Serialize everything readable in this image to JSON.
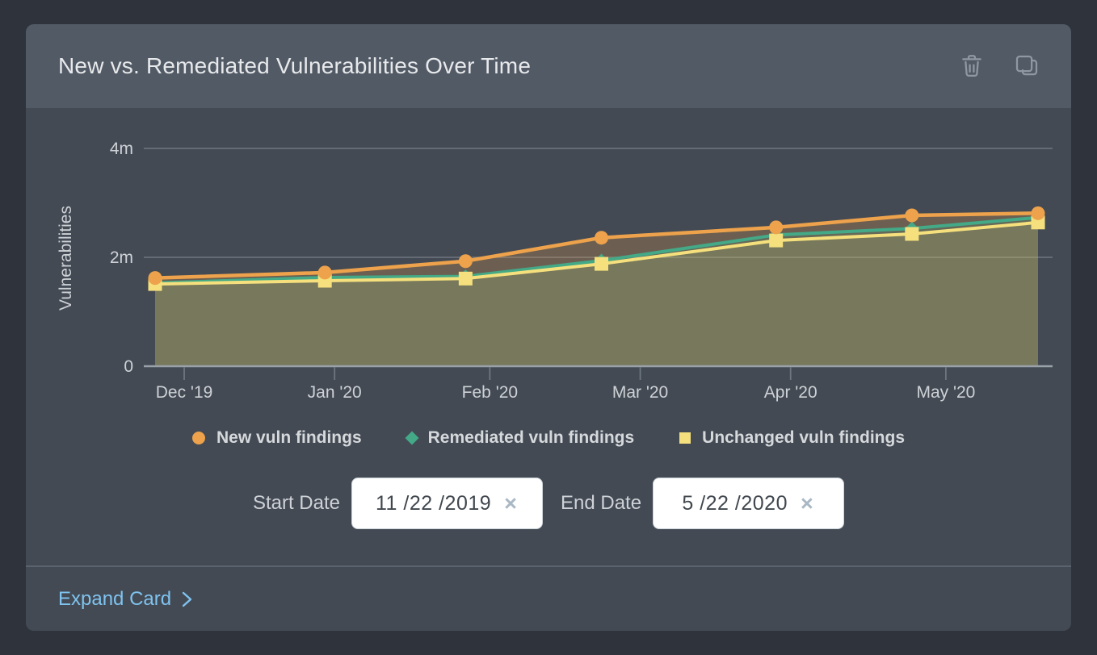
{
  "card": {
    "title": "New vs. Remediated Vulnerabilities Over Time",
    "actions": {
      "delete_icon": "trash-icon",
      "clone_icon": "copy-icon"
    },
    "footer": {
      "expand_label": "Expand Card",
      "chevron_icon": "chevron-right-icon"
    }
  },
  "filters": {
    "start_date": {
      "label": "Start Date",
      "value": "11 /22 /2019",
      "clear_glyph": "×"
    },
    "end_date": {
      "label": "End Date",
      "value": "5 /22 /2020",
      "clear_glyph": "×"
    }
  },
  "chart_data": {
    "type": "area",
    "title": "New vs. Remediated Vulnerabilities Over Time",
    "xlabel": "",
    "ylabel": "Vulnerabilities",
    "ylim": [
      0,
      4000000
    ],
    "yticks": [
      {
        "value": 0,
        "label": "0"
      },
      {
        "value": 2000000,
        "label": "2m"
      },
      {
        "value": 4000000,
        "label": "4m"
      }
    ],
    "grid": true,
    "legend_position": "bottom",
    "x_axis": {
      "unit": "days-from-start",
      "range": [
        0,
        182
      ],
      "ticks": [
        {
          "day": 6,
          "label": "Dec '19"
        },
        {
          "day": 37,
          "label": "Jan '20"
        },
        {
          "day": 69,
          "label": "Feb '20"
        },
        {
          "day": 100,
          "label": "Mar '20"
        },
        {
          "day": 131,
          "label": "Apr '20"
        },
        {
          "day": 163,
          "label": "May '20"
        }
      ]
    },
    "x_days": [
      0,
      35,
      64,
      92,
      128,
      156,
      182
    ],
    "series": [
      {
        "name": "New vuln findings",
        "marker": "circle",
        "color": "#eda24b",
        "values": [
          1620000,
          1720000,
          1930000,
          2360000,
          2550000,
          2770000,
          2810000
        ]
      },
      {
        "name": "Remediated vuln findings",
        "marker": "diamond",
        "color": "#43a987",
        "values": [
          1530000,
          1630000,
          1650000,
          1940000,
          2410000,
          2530000,
          2730000
        ]
      },
      {
        "name": "Unchanged vuln findings",
        "marker": "square",
        "color": "#f5e07d",
        "values": [
          1510000,
          1570000,
          1610000,
          1880000,
          2310000,
          2430000,
          2640000
        ]
      }
    ]
  },
  "colors": {
    "page_bg": "#2e333c",
    "card_header_bg": "#525a66",
    "card_body_bg": "#434a54",
    "divider": "#5b636e",
    "title_text": "#e7e9eb",
    "muted_icon": "#8f98a2",
    "axis_text": "#ced2d6",
    "gridline": "#6f7680",
    "axis_line": "#9aa1a9",
    "legend_text": "#d6d9dc",
    "link": "#7fc3ef",
    "input_bg": "#ffffff",
    "input_border": "#ccd3d9",
    "input_text": "#40474e",
    "clear_icon": "#a9b8c4"
  }
}
